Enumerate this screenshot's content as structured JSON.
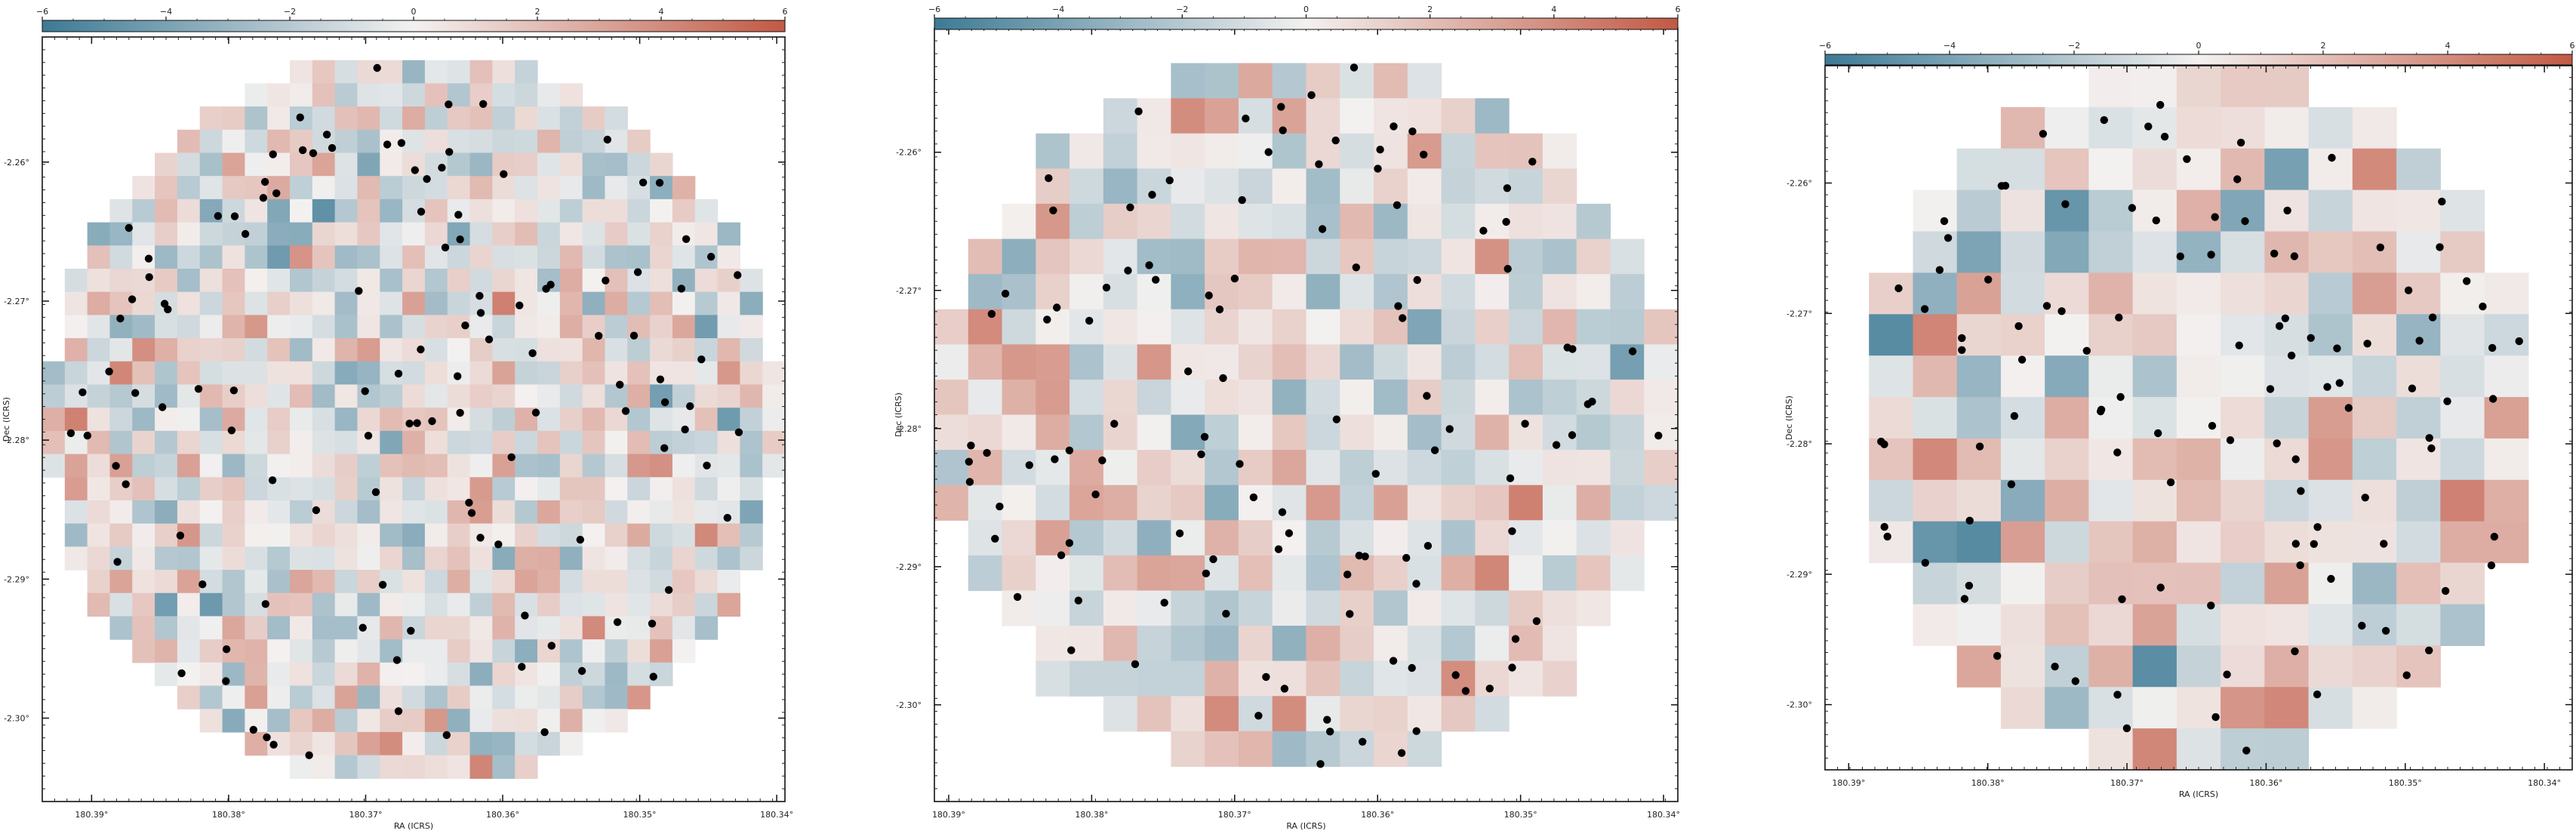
{
  "chart_data": [
    {
      "type": "heatmap",
      "colorbar": {
        "min": -6,
        "max": 6,
        "ticks": [
          "−6",
          "−4",
          "−2",
          "0",
          "2",
          "4",
          "6"
        ]
      },
      "x_label": "RA (ICRS)",
      "y_label": "Dec (ICRS)",
      "x_ticks": [
        "180.39°",
        "180.38°",
        "180.37°",
        "180.36°",
        "180.35°",
        "180.34°"
      ],
      "x_tick_values": [
        180.3875,
        180.3775,
        180.3675,
        180.3575,
        180.3475,
        180.3375
      ],
      "y_ticks": [
        "-2.26°",
        "-2.27°",
        "-2.28°",
        "-2.29°",
        "-2.30°"
      ],
      "y_tick_values": [
        -2.26,
        -2.27,
        -2.28,
        -2.29,
        -2.3
      ],
      "ra_range": [
        180.3911,
        180.3369
      ],
      "dec_range": [
        -2.251,
        -2.306
      ],
      "grid": {
        "cols": 33,
        "rows": 33,
        "seed": 11,
        "variance_scale": 1.0
      },
      "n_sources": 120
    },
    {
      "type": "heatmap",
      "colorbar": {
        "min": -6,
        "max": 6,
        "ticks": [
          "−6",
          "−4",
          "−2",
          "0",
          "2",
          "4",
          "6"
        ]
      },
      "x_label": "RA (ICRS)",
      "y_label": "Dec (ICRS)",
      "x_ticks": [
        "180.39°",
        "180.38°",
        "180.37°",
        "180.36°",
        "180.35°",
        "180.34°"
      ],
      "x_tick_values": [
        180.3885,
        180.3785,
        180.3685,
        180.3585,
        180.3485,
        180.3385
      ],
      "y_ticks": [
        "-2.26°",
        "-2.27°",
        "-2.28°",
        "-2.29°",
        "-2.30°"
      ],
      "y_tick_values": [
        -2.26,
        -2.27,
        -2.28,
        -2.29,
        -2.3
      ],
      "ra_range": [
        180.3895,
        180.3375
      ],
      "dec_range": [
        -2.251,
        -2.307
      ],
      "grid": {
        "cols": 22,
        "rows": 22,
        "seed": 23,
        "variance_scale": 1.05
      },
      "n_sources": 115
    },
    {
      "type": "heatmap",
      "colorbar": {
        "min": -6,
        "max": 6,
        "ticks": [
          "−6",
          "−4",
          "−2",
          "0",
          "2",
          "4",
          "6"
        ]
      },
      "x_label": "RA (ICRS)",
      "y_label": "Dec (ICRS)",
      "x_ticks": [
        "180.39°",
        "180.38°",
        "180.37°",
        "180.36°",
        "180.35°",
        "180.34°"
      ],
      "x_tick_values": [
        180.3885,
        180.3785,
        180.3685,
        180.3585,
        180.3485,
        180.3385
      ],
      "y_ticks": [
        "-2.26°",
        "-2.27°",
        "-2.28°",
        "-2.29°",
        "-2.30°"
      ],
      "y_tick_values": [
        -2.26,
        -2.27,
        -2.28,
        -2.29,
        -2.3
      ],
      "ra_range": [
        180.3902,
        180.3365
      ],
      "dec_range": [
        -2.251,
        -2.305
      ],
      "grid": {
        "cols": 17,
        "rows": 17,
        "seed": 37,
        "variance_scale": 1.15
      },
      "n_sources": 110
    }
  ],
  "colors": {
    "negative": "#3d7a95",
    "neutral": "#f3f1f0",
    "positive": "#c25944",
    "source_marker": "#000000",
    "frame": "#111111"
  }
}
